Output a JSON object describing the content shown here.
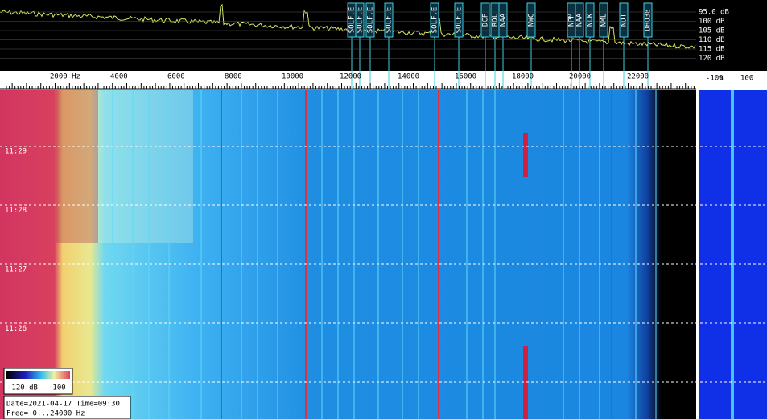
{
  "spectrum": {
    "db_labels": [
      "95.0 dB",
      "100 dB",
      "105 dB",
      "110 dB",
      "115 dB",
      "120 dB"
    ],
    "markers": [
      "SOLF.E",
      "SOLF.E",
      "SOLF.E",
      "SOLF.E",
      "SOLF.E",
      "SOLF.E",
      "DCF",
      "RDL",
      "NAA",
      "NWC",
      "NPM",
      "NAA",
      "NLK",
      "NML",
      "NDT",
      "DHO38"
    ]
  },
  "freq_axis": {
    "labels": [
      "2000 Hz",
      "4000",
      "6000",
      "8000",
      "10000",
      "12000",
      "14000",
      "16000",
      "18000",
      "20000",
      "22000"
    ],
    "side_labels": [
      "-100",
      "%",
      "100"
    ]
  },
  "waterfall": {
    "time_labels": [
      "11:29",
      "11:28",
      "11:27",
      "11:26"
    ]
  },
  "colorbar": {
    "labels": [
      "-120 dB",
      "-100"
    ]
  },
  "info": {
    "date": "Date=2021-04-17 Time=09:30",
    "freq": "Freq= 0...24000 Hz"
  }
}
